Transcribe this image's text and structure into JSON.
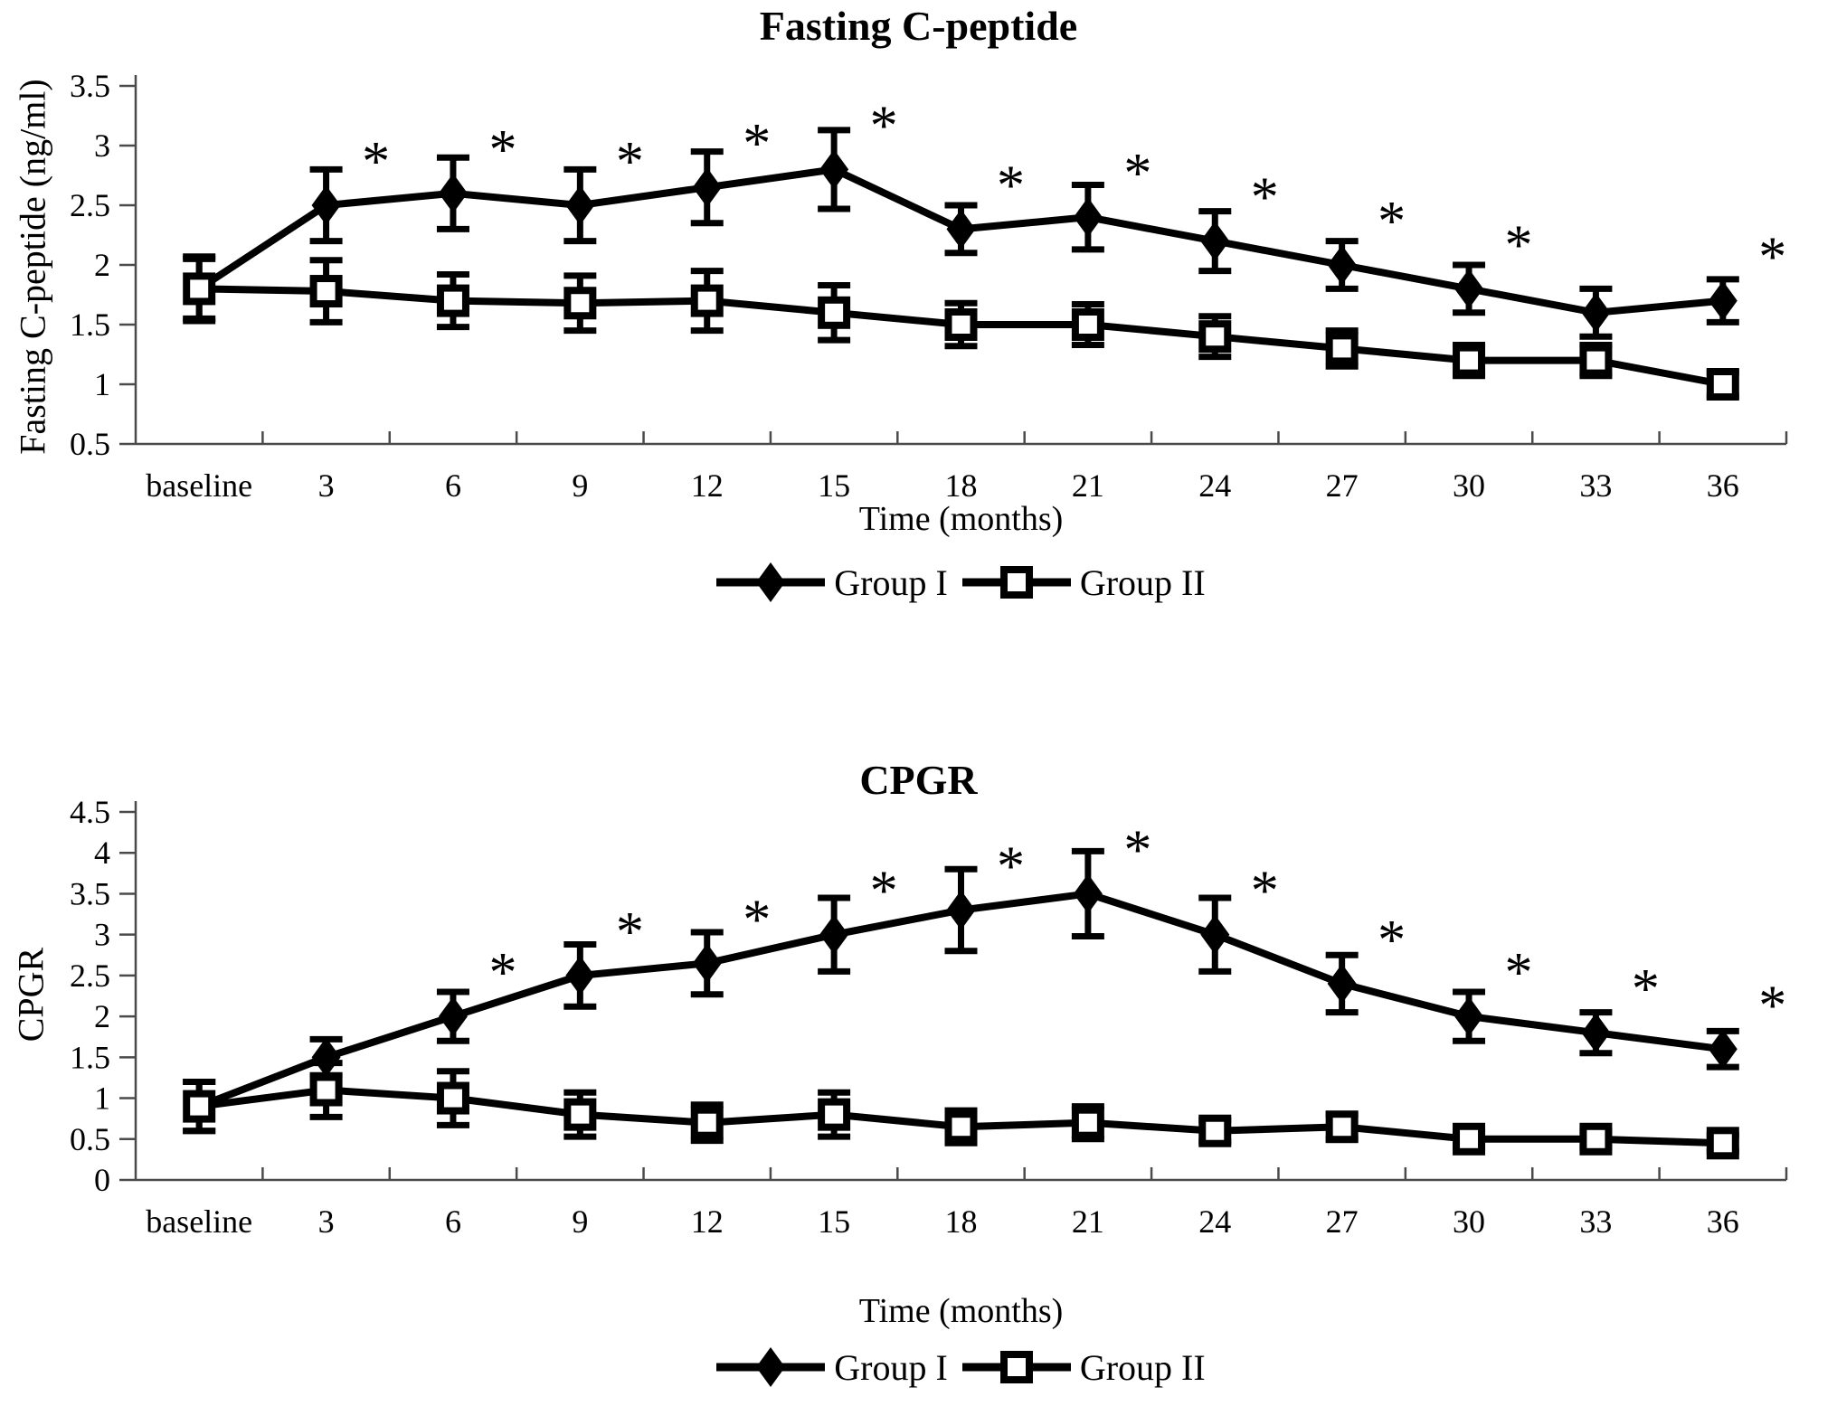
{
  "figure": {
    "background": "#ffffff",
    "ink": "#000000",
    "axis_color": "#4a4a4a",
    "significance_marker": "*"
  },
  "chart_data": [
    {
      "type": "line",
      "title": "Fasting C-peptide",
      "xlabel": "Time (months)",
      "ylabel": "Fasting C-peptide (ng/ml)",
      "categories": [
        "baseline",
        "3",
        "6",
        "9",
        "12",
        "15",
        "18",
        "21",
        "24",
        "27",
        "30",
        "33",
        "36"
      ],
      "ylim": [
        0.5,
        3.5
      ],
      "ytick_step": 0.5,
      "grid": false,
      "legend_position": "below",
      "series": [
        {
          "name": "Group I",
          "marker": "diamond",
          "values": [
            1.8,
            2.5,
            2.6,
            2.5,
            2.65,
            2.8,
            2.3,
            2.4,
            2.2,
            2.0,
            1.8,
            1.6,
            1.7
          ],
          "errors": [
            0.27,
            0.3,
            0.3,
            0.3,
            0.3,
            0.33,
            0.2,
            0.27,
            0.25,
            0.2,
            0.2,
            0.2,
            0.18
          ],
          "significant": [
            false,
            true,
            true,
            true,
            true,
            true,
            true,
            true,
            true,
            true,
            true,
            false,
            true
          ]
        },
        {
          "name": "Group II",
          "marker": "square",
          "values": [
            1.8,
            1.78,
            1.7,
            1.68,
            1.7,
            1.6,
            1.5,
            1.5,
            1.4,
            1.3,
            1.2,
            1.2,
            1.0
          ],
          "errors": [
            0.25,
            0.26,
            0.22,
            0.23,
            0.25,
            0.23,
            0.18,
            0.17,
            0.17,
            0.15,
            0.13,
            0.13,
            0.1
          ],
          "significant": [
            false,
            false,
            false,
            false,
            false,
            false,
            false,
            false,
            false,
            false,
            false,
            false,
            false
          ]
        }
      ]
    },
    {
      "type": "line",
      "title": "CPGR",
      "xlabel": "Time (months)",
      "ylabel": "CPGR",
      "categories": [
        "baseline",
        "3",
        "6",
        "9",
        "12",
        "15",
        "18",
        "21",
        "24",
        "27",
        "30",
        "33",
        "36"
      ],
      "ylim": [
        0,
        4.5
      ],
      "ytick_step": 0.5,
      "grid": false,
      "legend_position": "below",
      "series": [
        {
          "name": "Group I",
          "marker": "diamond",
          "values": [
            0.9,
            1.5,
            2.0,
            2.5,
            2.65,
            3.0,
            3.3,
            3.5,
            3.0,
            2.4,
            2.0,
            1.8,
            1.6
          ],
          "errors": [
            0.3,
            0.22,
            0.3,
            0.38,
            0.38,
            0.45,
            0.5,
            0.52,
            0.45,
            0.35,
            0.3,
            0.25,
            0.22
          ],
          "significant": [
            false,
            false,
            true,
            true,
            true,
            true,
            true,
            true,
            true,
            true,
            true,
            true,
            true
          ]
        },
        {
          "name": "Group II",
          "marker": "square",
          "values": [
            0.9,
            1.1,
            1.0,
            0.8,
            0.7,
            0.8,
            0.65,
            0.7,
            0.6,
            0.65,
            0.5,
            0.5,
            0.45
          ],
          "errors": [
            0.3,
            0.33,
            0.33,
            0.27,
            0.22,
            0.27,
            0.2,
            0.2,
            0.13,
            0.15,
            0.1,
            0.1,
            0.1
          ],
          "significant": [
            false,
            false,
            false,
            false,
            false,
            false,
            false,
            false,
            false,
            false,
            false,
            false,
            false
          ]
        }
      ]
    }
  ]
}
